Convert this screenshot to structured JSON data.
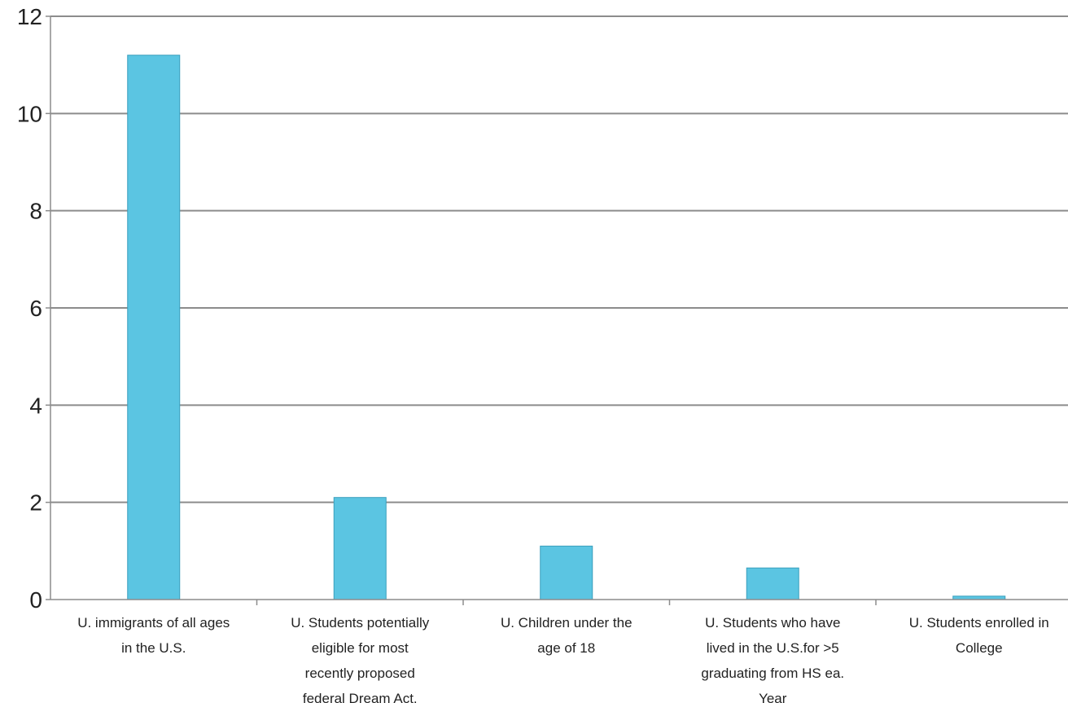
{
  "chart_data": {
    "type": "bar",
    "categories": [
      [
        "U. immigrants of all ages",
        "in the U.S."
      ],
      [
        "U. Students potentially",
        "eligible for most",
        "recently proposed",
        "federal Dream Act."
      ],
      [
        "U. Children under the",
        "age of 18"
      ],
      [
        "U. Students who have",
        "lived in the U.S.for >5",
        "graduating from HS ea.",
        "Year"
      ],
      [
        "U. Students enrolled in",
        "College"
      ]
    ],
    "values": [
      11.2,
      2.1,
      1.1,
      0.65,
      0.07
    ],
    "ylim": [
      0,
      12
    ],
    "yticks": [
      "0",
      "2",
      "4",
      "6",
      "8",
      "10",
      "12"
    ],
    "grid": true,
    "title": "",
    "xlabel": "",
    "ylabel": "",
    "colors": {
      "bar": "#5bc5e2",
      "bar_edge": "#3a9fbd",
      "grid": "#8c8c8c",
      "axis": "#8c8c8c"
    }
  }
}
